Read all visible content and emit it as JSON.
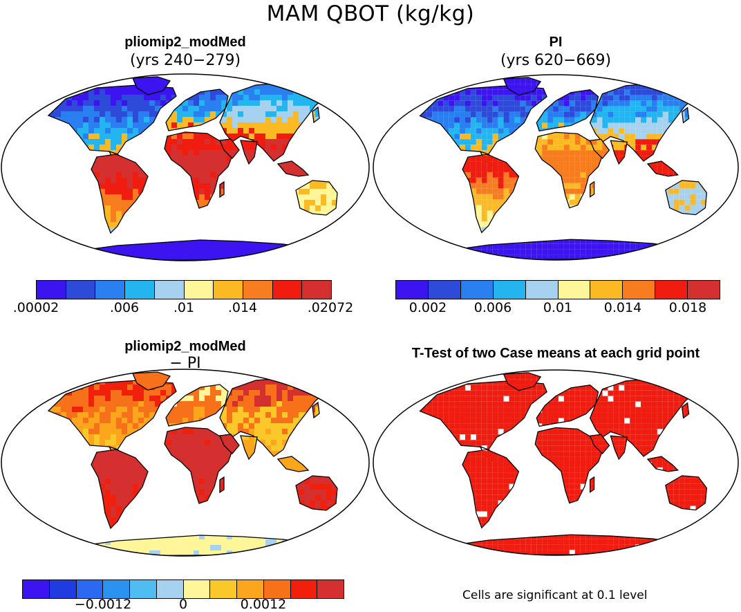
{
  "title": "MAM QBOT (kg/kg)",
  "panels": [
    {
      "title": "pliomip2_modMed",
      "subtitle": "(yrs 240−279)",
      "field": "plio"
    },
    {
      "title": "PI",
      "subtitle": "(yrs 620−669)",
      "field": "pi"
    },
    {
      "title": "pliomip2_modMed",
      "subtitle": "− PI",
      "field": "diff"
    },
    {
      "title": "T-Test of two Case means at each grid point",
      "subtitle": "",
      "field": "sig"
    }
  ],
  "colorbars": [
    {
      "colors": [
        "#3b14f0",
        "#2d4ad8",
        "#2a7ff0",
        "#22b5f0",
        "#a6d2f0",
        "#fff69a",
        "#fbb924",
        "#f67c1e",
        "#f01c10",
        "#d43030"
      ],
      "ticks": [
        ".00002",
        ".006",
        ".01",
        ".014",
        ".02072"
      ]
    },
    {
      "colors": [
        "#3b14f0",
        "#2d4ad8",
        "#2a7ff0",
        "#22b5f0",
        "#a6d2f0",
        "#fff69a",
        "#fbb924",
        "#f67c1e",
        "#f01c10",
        "#d43030"
      ],
      "ticks": [
        "0.002",
        "0.006",
        "0.01",
        "0.014",
        "0.018"
      ]
    },
    {
      "colors": [
        "#3b14f0",
        "#1f3ce0",
        "#2a6af0",
        "#2a93f0",
        "#4fbdf2",
        "#a6d2f0",
        "#fff69a",
        "#fbc82a",
        "#fba61c",
        "#f7701a",
        "#f0200c",
        "#d43030"
      ],
      "ticks": [
        "−0.0012",
        "0",
        "0.0012"
      ]
    }
  ],
  "footnote": "Cells are significant at 0.1 level",
  "chart_data": [
    {
      "type": "heatmap",
      "title": "pliomip2_modMed (yrs 240−279)",
      "variable": "MAM QBOT",
      "units": "kg/kg",
      "value_range": [
        2e-05,
        0.02072
      ],
      "colorbar_ticks": [
        2e-05,
        0.006,
        0.01,
        0.014,
        0.02072
      ]
    },
    {
      "type": "heatmap",
      "title": "PI (yrs 620−669)",
      "variable": "MAM QBOT",
      "units": "kg/kg",
      "value_range": [
        0.0,
        0.02
      ],
      "colorbar_ticks": [
        0.002,
        0.006,
        0.01,
        0.014,
        0.018
      ]
    },
    {
      "type": "heatmap",
      "title": "pliomip2_modMed − PI",
      "variable": "MAM QBOT difference",
      "units": "kg/kg",
      "colorbar_ticks": [
        -0.0012,
        0,
        0.0012
      ]
    },
    {
      "type": "heatmap",
      "title": "T-Test of two Case means at each grid point",
      "significance_level": 0.1
    }
  ]
}
